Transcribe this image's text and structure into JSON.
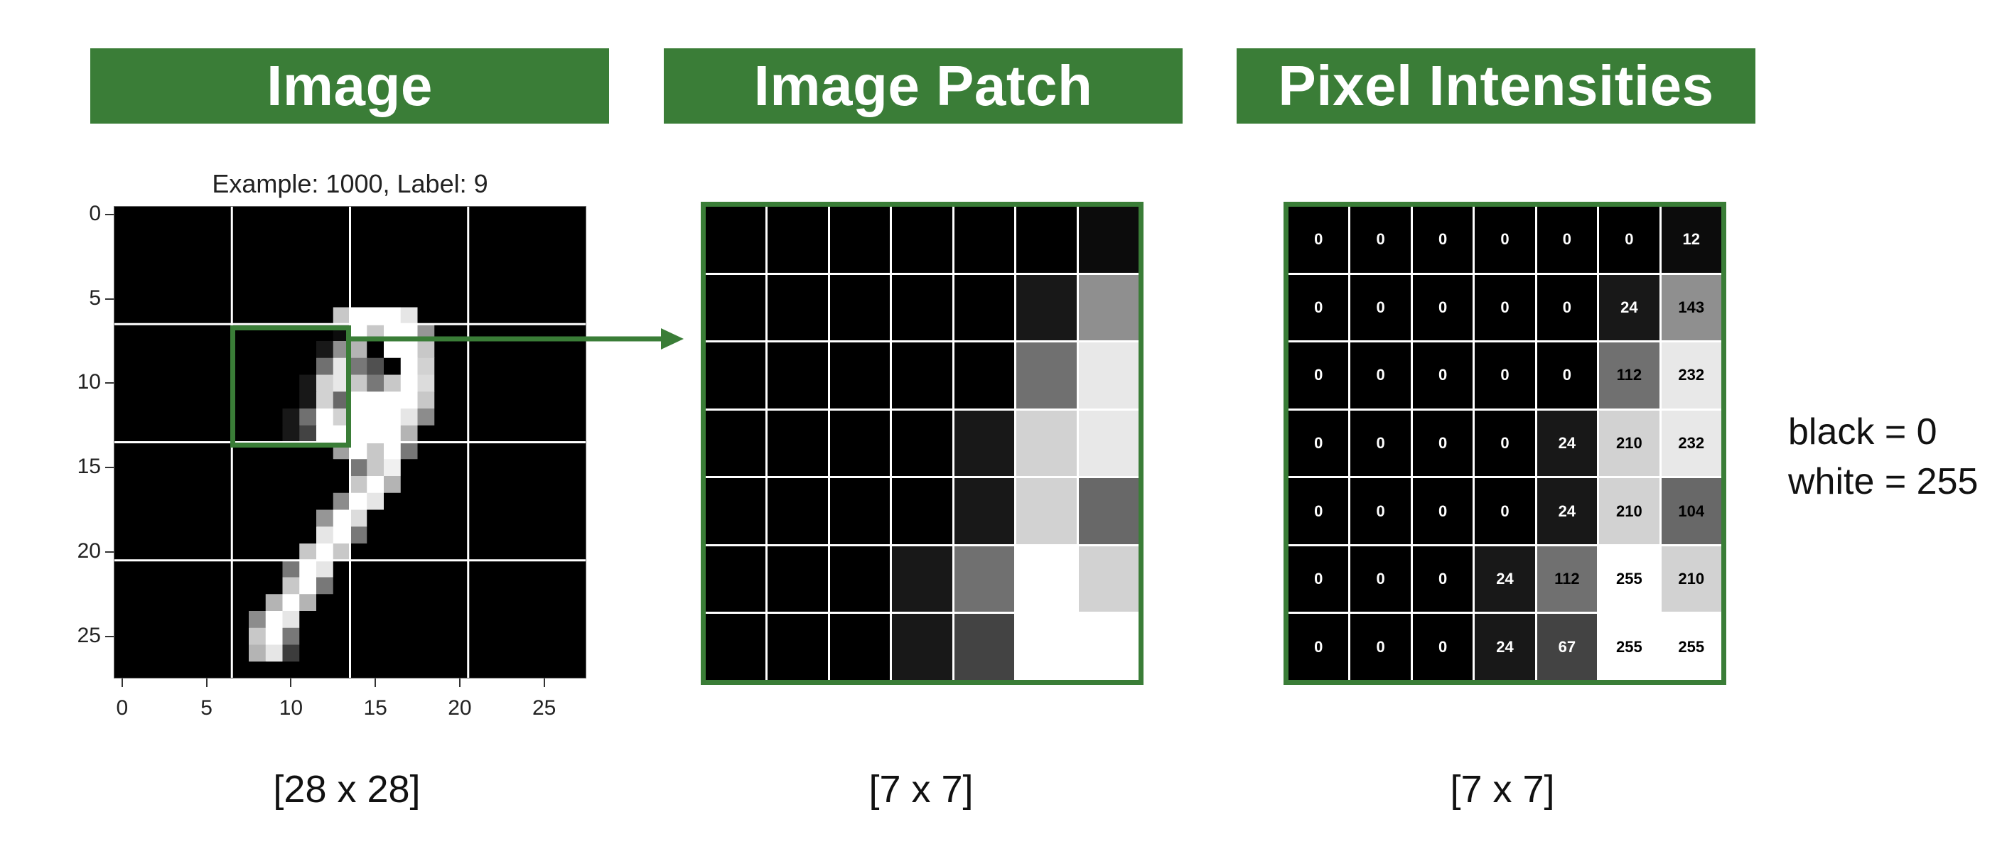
{
  "headers": {
    "image": "Image",
    "patch": "Image Patch",
    "intensities": "Pixel Intensities"
  },
  "image_plot": {
    "title": "Example: 1000, Label: 9",
    "yticks": [
      "0",
      "5",
      "10",
      "15",
      "20",
      "25"
    ],
    "xticks": [
      "0",
      "5",
      "10",
      "15",
      "20",
      "25"
    ]
  },
  "dimensions": {
    "image": "[28 x 28]",
    "patch": "[7 x 7]",
    "intensities": "[7 x 7]"
  },
  "legend": {
    "black": "black = 0",
    "white": "white = 255"
  },
  "pixel_values": [
    [
      0,
      0,
      0,
      0,
      0,
      0,
      12
    ],
    [
      0,
      0,
      0,
      0,
      0,
      24,
      143
    ],
    [
      0,
      0,
      0,
      0,
      0,
      112,
      232
    ],
    [
      0,
      0,
      0,
      0,
      24,
      210,
      232
    ],
    [
      0,
      0,
      0,
      0,
      24,
      210,
      104
    ],
    [
      0,
      0,
      0,
      24,
      112,
      255,
      210
    ],
    [
      0,
      0,
      0,
      24,
      67,
      255,
      255
    ]
  ],
  "colors": {
    "accent": "#3a7d37",
    "grid_line": "#ffffff"
  }
}
